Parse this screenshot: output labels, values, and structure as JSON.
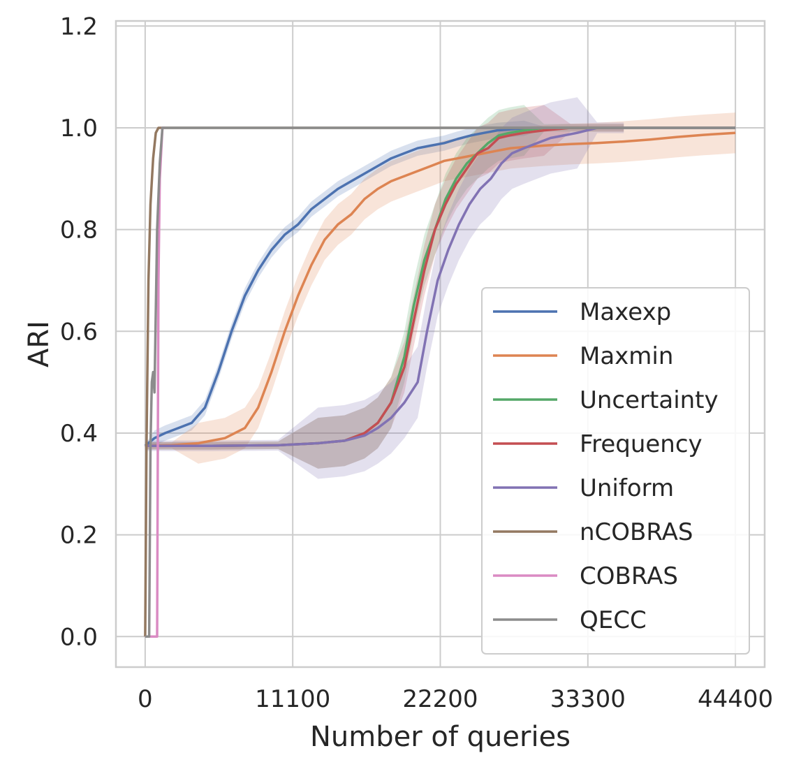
{
  "chart_data": {
    "type": "line",
    "xlabel": "Number of queries",
    "ylabel": "ARI",
    "xlim": [
      -2200,
      46600
    ],
    "ylim": [
      -0.06,
      1.21
    ],
    "xticks": [
      0,
      11100,
      22200,
      33300,
      44400
    ],
    "xtick_labels": [
      "0",
      "11100",
      "22200",
      "33300",
      "44400"
    ],
    "yticks": [
      0.0,
      0.2,
      0.4,
      0.6,
      0.8,
      1.0,
      1.2
    ],
    "ytick_labels": [
      "0.0",
      "0.2",
      "0.4",
      "0.6",
      "0.8",
      "1.0",
      "1.2"
    ],
    "grid": true,
    "legend_position": "lower-right",
    "series": [
      {
        "name": "Maxexp",
        "color": "#4c72b0",
        "band": 0.015,
        "x": [
          0,
          700,
          1500,
          2500,
          3500,
          4500,
          5500,
          6500,
          7500,
          8500,
          9500,
          10500,
          11500,
          12500,
          13500,
          14500,
          15500,
          16500,
          17500,
          18500,
          19500,
          20500,
          21500,
          22500,
          23500,
          24500,
          25500,
          26500,
          27500,
          28500,
          30000,
          32000,
          34000,
          36000,
          38000,
          40000,
          42000,
          44400
        ],
        "y": [
          0.375,
          0.39,
          0.4,
          0.41,
          0.42,
          0.45,
          0.52,
          0.6,
          0.67,
          0.72,
          0.76,
          0.79,
          0.81,
          0.84,
          0.86,
          0.88,
          0.895,
          0.91,
          0.925,
          0.94,
          0.95,
          0.96,
          0.965,
          0.97,
          0.978,
          0.985,
          0.99,
          0.995,
          0.997,
          0.999,
          1.0,
          1.0,
          1.0,
          1.0,
          1.0,
          1.0,
          1.0,
          1.0
        ]
      },
      {
        "name": "Maxmin",
        "color": "#dd8452",
        "band": 0.04,
        "x": [
          0,
          2000,
          4000,
          6000,
          7500,
          8500,
          9500,
          10500,
          11500,
          12500,
          13500,
          14500,
          15500,
          16500,
          17500,
          18500,
          19500,
          20500,
          21500,
          22500,
          23500,
          24500,
          25500,
          26500,
          27500,
          28500,
          30000,
          32000,
          34000,
          36000,
          38000,
          40000,
          42000,
          44400
        ],
        "y": [
          0.375,
          0.376,
          0.38,
          0.39,
          0.41,
          0.45,
          0.52,
          0.6,
          0.67,
          0.73,
          0.78,
          0.81,
          0.83,
          0.86,
          0.88,
          0.895,
          0.905,
          0.915,
          0.925,
          0.935,
          0.94,
          0.945,
          0.95,
          0.955,
          0.96,
          0.962,
          0.965,
          0.968,
          0.97,
          0.973,
          0.977,
          0.982,
          0.986,
          0.99
        ]
      },
      {
        "name": "Uncertainty",
        "color": "#55a868",
        "band": 0.05,
        "x": [
          0,
          5000,
          10000,
          13000,
          15000,
          16500,
          17500,
          18500,
          19500,
          20200,
          21000,
          21800,
          22600,
          23400,
          24200,
          25000,
          25800,
          26600,
          27400,
          28500,
          30000,
          32000,
          34000,
          36000
        ],
        "y": [
          0.375,
          0.375,
          0.376,
          0.38,
          0.385,
          0.4,
          0.42,
          0.46,
          0.55,
          0.65,
          0.74,
          0.8,
          0.86,
          0.9,
          0.93,
          0.95,
          0.97,
          0.985,
          0.99,
          0.995,
          1.0,
          1.0,
          1.0,
          1.0
        ]
      },
      {
        "name": "Frequency",
        "color": "#c44e52",
        "band": 0.05,
        "x": [
          0,
          5000,
          10000,
          13000,
          15000,
          16500,
          17500,
          18500,
          19500,
          20200,
          21000,
          21800,
          22600,
          23400,
          24200,
          25000,
          25800,
          26600,
          27400,
          28500,
          30000,
          32000,
          34000,
          36000
        ],
        "y": [
          0.375,
          0.375,
          0.376,
          0.38,
          0.385,
          0.4,
          0.42,
          0.46,
          0.53,
          0.62,
          0.72,
          0.8,
          0.85,
          0.89,
          0.92,
          0.95,
          0.96,
          0.98,
          0.985,
          0.99,
          0.995,
          1.0,
          1.0,
          1.0
        ]
      },
      {
        "name": "Uniform",
        "color": "#8172b3",
        "band": 0.07,
        "x": [
          0,
          5000,
          10000,
          13000,
          15000,
          16500,
          17500,
          18500,
          19500,
          20500,
          21200,
          22000,
          22800,
          23600,
          24400,
          25200,
          26000,
          26800,
          27600,
          28500,
          29500,
          30500,
          31500,
          32500,
          34000,
          36000
        ],
        "y": [
          0.375,
          0.375,
          0.376,
          0.38,
          0.385,
          0.395,
          0.41,
          0.43,
          0.46,
          0.5,
          0.6,
          0.7,
          0.76,
          0.81,
          0.85,
          0.88,
          0.9,
          0.93,
          0.95,
          0.96,
          0.97,
          0.98,
          0.985,
          0.99,
          1.0,
          1.0
        ]
      },
      {
        "name": "nCOBRAS",
        "color": "#937860",
        "band": 0.0,
        "x": [
          0,
          100,
          250,
          400,
          600,
          800,
          1000,
          1200,
          44400
        ],
        "y": [
          0.0,
          0.375,
          0.7,
          0.85,
          0.94,
          0.99,
          1.0,
          1.0,
          1.0
        ]
      },
      {
        "name": "COBRAS",
        "color": "#da8bc3",
        "band": 0.0,
        "x": [
          0,
          900,
          950,
          1000,
          1100,
          1300,
          1500
        ],
        "y": [
          0.0,
          0.0,
          0.375,
          0.7,
          0.9,
          1.0,
          1.0
        ]
      },
      {
        "name": "QECC",
        "color": "#8c8c8c",
        "band": 0.0,
        "x": [
          0,
          300,
          400,
          500,
          600,
          700,
          900,
          1100,
          1300,
          44400
        ],
        "y": [
          0.0,
          0.0,
          0.375,
          0.5,
          0.52,
          0.48,
          0.8,
          0.93,
          1.0,
          1.0
        ]
      }
    ]
  }
}
